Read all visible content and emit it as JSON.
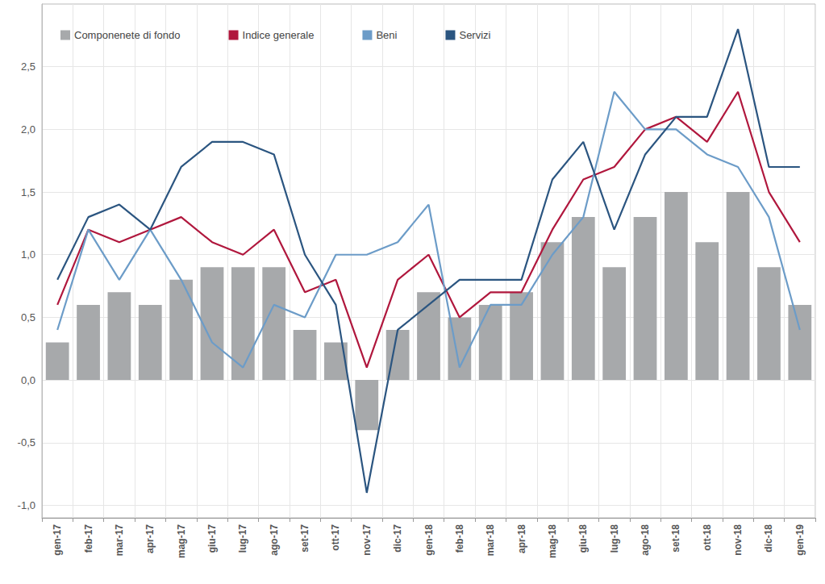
{
  "chart_data": {
    "type": "bar",
    "categories": [
      "gen-17",
      "feb-17",
      "mar-17",
      "apr-17",
      "mag-17",
      "giu-17",
      "lug-17",
      "ago-17",
      "set-17",
      "ott-17",
      "nov-17",
      "dic-17",
      "gen-18",
      "feb-18",
      "mar-18",
      "apr-18",
      "mag-18",
      "giu-18",
      "lug-18",
      "ago-18",
      "set-18",
      "ott-18",
      "nov-18",
      "dic-18",
      "gen-19"
    ],
    "series": [
      {
        "name": "Componenete di fondo",
        "type": "bar",
        "color": "#a7a9ab",
        "values": [
          0.3,
          0.6,
          0.7,
          0.6,
          0.8,
          0.9,
          0.9,
          0.9,
          0.4,
          0.3,
          -0.4,
          0.4,
          0.7,
          0.5,
          0.6,
          0.7,
          1.1,
          1.3,
          0.9,
          1.3,
          1.5,
          1.1,
          1.5,
          0.9,
          0.6
        ]
      },
      {
        "name": "Indice generale",
        "type": "line",
        "color": "#b0173d",
        "values": [
          0.6,
          1.2,
          1.1,
          1.2,
          1.3,
          1.1,
          1.0,
          1.2,
          0.7,
          0.8,
          0.1,
          0.8,
          1.0,
          0.5,
          0.7,
          0.7,
          1.2,
          1.6,
          1.7,
          2.0,
          2.1,
          1.9,
          2.3,
          1.5,
          1.1
        ]
      },
      {
        "name": "Beni",
        "type": "line",
        "color": "#6c9cc8",
        "values": [
          0.4,
          1.2,
          0.8,
          1.2,
          0.8,
          0.3,
          0.1,
          0.6,
          0.5,
          1.0,
          1.0,
          1.1,
          1.4,
          0.1,
          0.6,
          0.6,
          1.0,
          1.3,
          2.3,
          2.0,
          2.0,
          1.8,
          1.7,
          1.3,
          0.4
        ]
      },
      {
        "name": "Servizi",
        "type": "line",
        "color": "#2b5580",
        "values": [
          0.8,
          1.3,
          1.4,
          1.2,
          1.7,
          1.9,
          1.9,
          1.8,
          1.0,
          0.6,
          -0.9,
          0.4,
          0.6,
          0.8,
          0.8,
          0.8,
          1.6,
          1.9,
          1.2,
          1.8,
          2.1,
          2.1,
          2.8,
          1.7,
          1.7
        ]
      }
    ],
    "ylim": [
      -1.1,
      3.0
    ],
    "yticks": [
      {
        "value": -1.0,
        "label": "-1,0"
      },
      {
        "value": -0.5,
        "label": "-0,5"
      },
      {
        "value": 0,
        "label": "0,0"
      },
      {
        "value": 0.5,
        "label": "0,5"
      },
      {
        "value": 1.0,
        "label": "1,0"
      },
      {
        "value": 1.5,
        "label": "1,5"
      },
      {
        "value": 2.0,
        "label": "2,0"
      },
      {
        "value": 2.5,
        "label": "2,5"
      }
    ],
    "grid": true,
    "legend": "top"
  }
}
